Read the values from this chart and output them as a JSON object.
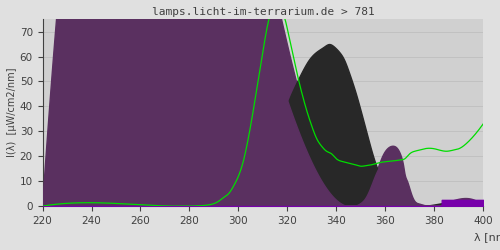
{
  "title": "lamps.licht-im-terrarium.de > 781",
  "xlabel": "λ [nm]",
  "ylabel": "I(λ)  [µW/cm2/nm]",
  "xlim": [
    220,
    400
  ],
  "ylim": [
    0,
    75
  ],
  "yticks": [
    0,
    10,
    20,
    30,
    40,
    50,
    60,
    70
  ],
  "xticks": [
    220,
    240,
    260,
    280,
    300,
    320,
    340,
    360,
    380,
    400
  ],
  "bg_color": "#e0e0e0",
  "plot_bg_color": "#d0d0d0",
  "title_color": "#404040",
  "axis_color": "#404040",
  "green_line_color": "#00dd00",
  "dark_fill_color": "#282828",
  "gray_fill_color": "#606060",
  "purple_fill_color": "#5a3060",
  "purple_bar_color": "#7700aa"
}
